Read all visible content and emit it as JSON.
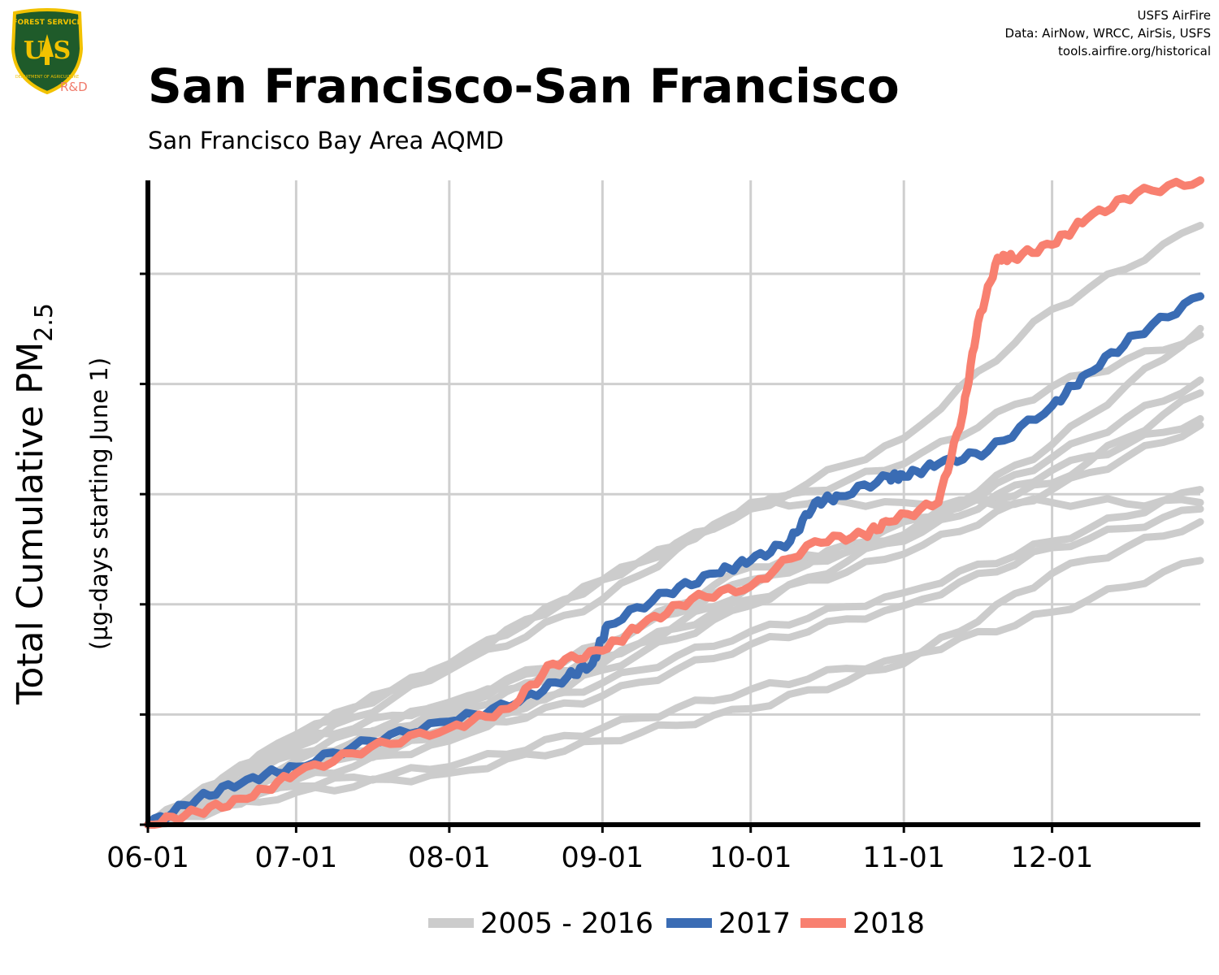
{
  "header": {
    "title": "San Francisco-San Francisco",
    "subtitle": "San Francisco Bay Area AQMD",
    "attribution": [
      "USFS AirFire",
      "Data: AirNow, WRCC, AirSis, USFS",
      "tools.airfire.org/historical"
    ]
  },
  "logo": {
    "text_top": "FOREST SERVICE",
    "text_main": "U S",
    "text_bottom": "DEPARTMENT OF AGRICULTURE",
    "tag": "R&D",
    "colors": {
      "shield": "#1f5b2a",
      "border": "#f2c200",
      "tag": "#f07a6a"
    }
  },
  "chart_data": {
    "type": "line",
    "title": "San Francisco-San Francisco",
    "subtitle": "San Francisco Bay Area AQMD",
    "xlabel": "",
    "ylabel_main": "Total Cumulative PM",
    "ylabel_sub": "2.5",
    "ylabel_units": "(µg-days starting June 1)",
    "x_ticks": [
      "06-01",
      "07-01",
      "08-01",
      "09-01",
      "10-01",
      "11-01",
      "12-01"
    ],
    "x_tick_days": [
      0,
      30,
      61,
      92,
      122,
      153,
      183
    ],
    "xlim_days": [
      0,
      213
    ],
    "ylim_fraction": [
      0,
      1
    ],
    "y_gridlines_fraction": [
      0.171,
      0.342,
      0.513,
      0.684,
      0.855
    ],
    "y_tick_labels_visible": false,
    "grid": true,
    "legend": {
      "position": "bottom",
      "entries": [
        "2005 - 2016",
        "2017",
        "2018"
      ]
    },
    "colors": {
      "historical": "#cccccc",
      "2017": "#3a6cb4",
      "2018": "#f88070"
    },
    "series_note_units": "fraction of y-axis height",
    "historical_series_endpoints": {
      "x_days": [
        0,
        30,
        61,
        92,
        122,
        153,
        183,
        213
      ],
      "series": [
        {
          "values": [
            0,
            0.14,
            0.25,
            0.38,
            0.49,
            0.6,
            0.8,
            0.93
          ]
        },
        {
          "values": [
            0,
            0.14,
            0.25,
            0.38,
            0.49,
            0.56,
            0.68,
            0.76
          ]
        },
        {
          "values": [
            0,
            0.12,
            0.24,
            0.35,
            0.5,
            0.5,
            0.5,
            0.5
          ]
        },
        {
          "values": [
            0,
            0.1,
            0.18,
            0.28,
            0.38,
            0.45,
            0.59,
            0.77
          ]
        },
        {
          "values": [
            0,
            0.09,
            0.15,
            0.22,
            0.3,
            0.36,
            0.44,
            0.52
          ]
        },
        {
          "values": [
            0,
            0.07,
            0.13,
            0.24,
            0.34,
            0.45,
            0.57,
            0.69
          ]
        },
        {
          "values": [
            0,
            0.06,
            0.09,
            0.15,
            0.21,
            0.26,
            0.33,
            0.41
          ]
        },
        {
          "values": [
            0,
            0.05,
            0.08,
            0.13,
            0.18,
            0.25,
            0.39,
            0.47
          ]
        },
        {
          "values": [
            0,
            0.08,
            0.14,
            0.2,
            0.28,
            0.34,
            0.43,
            0.49
          ]
        },
        {
          "values": [
            0,
            0.1,
            0.17,
            0.26,
            0.35,
            0.42,
            0.52,
            0.62
          ]
        },
        {
          "values": [
            0,
            0.11,
            0.19,
            0.25,
            0.37,
            0.47,
            0.53,
            0.67
          ]
        },
        {
          "values": [
            0,
            0.13,
            0.19,
            0.28,
            0.4,
            0.44,
            0.55,
            0.63
          ]
        }
      ]
    },
    "series": [
      {
        "name": "2017",
        "x_days": [
          0,
          10,
          20,
          30,
          45,
          61,
          75,
          85,
          90,
          93,
          105,
          115,
          122,
          130,
          135,
          140,
          150,
          153,
          160,
          170,
          183,
          190,
          200,
          213
        ],
        "values": [
          0,
          0.04,
          0.07,
          0.09,
          0.13,
          0.16,
          0.19,
          0.23,
          0.25,
          0.31,
          0.36,
          0.39,
          0.41,
          0.44,
          0.5,
          0.51,
          0.54,
          0.54,
          0.56,
          0.58,
          0.65,
          0.7,
          0.76,
          0.82
        ]
      },
      {
        "name": "2018",
        "x_days": [
          0,
          10,
          20,
          30,
          45,
          61,
          73,
          82,
          92,
          100,
          110,
          122,
          135,
          145,
          150,
          160,
          165,
          168,
          172,
          175,
          183,
          190,
          200,
          213
        ],
        "values": [
          0,
          0.02,
          0.04,
          0.08,
          0.12,
          0.15,
          0.18,
          0.25,
          0.27,
          0.31,
          0.35,
          0.37,
          0.44,
          0.45,
          0.47,
          0.5,
          0.64,
          0.78,
          0.88,
          0.88,
          0.9,
          0.94,
          0.98,
          1.0
        ]
      }
    ]
  }
}
